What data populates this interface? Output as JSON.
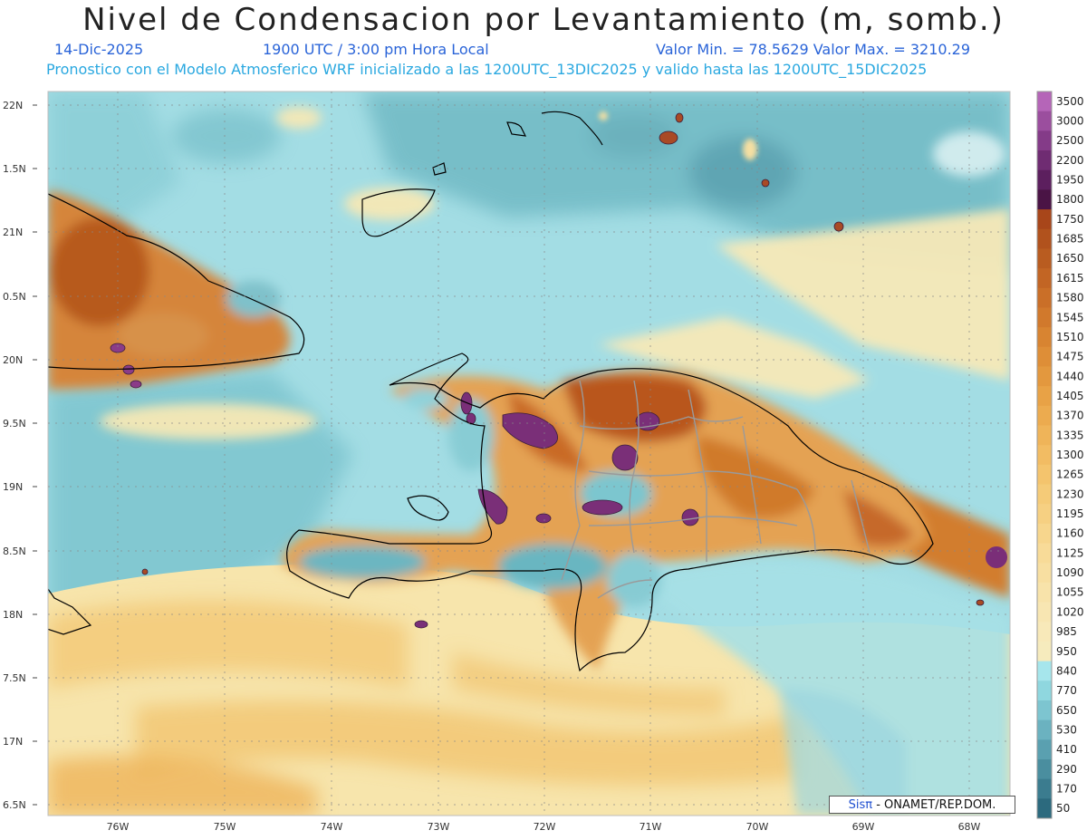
{
  "header": {
    "title": "Nivel de Condensacion por Levantamiento (m, somb.)",
    "date": "14-Dic-2025",
    "time": "1900 UTC / 3:00 pm Hora Local",
    "min_max": "Valor Min. = 78.5629   Valor Max. = 3210.29",
    "model_info": "Pronostico con el Modelo Atmosferico WRF inicializado a las 1200UTC_13DIC2025 y valido hasta las  1200UTC_15DIC2025"
  },
  "axes": {
    "lat_labels": [
      "22N",
      "1.5N",
      "21N",
      "0.5N",
      "20N",
      "9.5N",
      "19N",
      "8.5N",
      "18N",
      "7.5N",
      "17N",
      "6.5N"
    ],
    "lon_labels": [
      "76W",
      "75W",
      "74W",
      "73W",
      "72W",
      "71W",
      "70W",
      "69W",
      "68W"
    ]
  },
  "colorbar": {
    "labels": [
      "3500",
      "3000",
      "2500",
      "2200",
      "1950",
      "1800",
      "1750",
      "1685",
      "1650",
      "1615",
      "1580",
      "1545",
      "1510",
      "1475",
      "1440",
      "1405",
      "1370",
      "1335",
      "1300",
      "1265",
      "1230",
      "1195",
      "1160",
      "1125",
      "1090",
      "1055",
      "1020",
      "985",
      "950",
      "840",
      "770",
      "650",
      "530",
      "410",
      "290",
      "170",
      "50"
    ],
    "colors": [
      "#b565b8",
      "#9b4e9e",
      "#843b88",
      "#6f2c72",
      "#5c1f5e",
      "#4a1445",
      "#a8461a",
      "#b1521d",
      "#b95c20",
      "#c26524",
      "#ca6f28",
      "#d1792c",
      "#d88431",
      "#de8e37",
      "#e3983e",
      "#e8a246",
      "#ecab4f",
      "#efb459",
      "#f2bc63",
      "#f4c46d",
      "#f5cb78",
      "#f6d082",
      "#f7d68d",
      "#f8db98",
      "#f8dfa1",
      "#f8e3aa",
      "#f8e6b2",
      "#f8e9b9",
      "#f6ebbd",
      "#a6e6ec",
      "#8fd7df",
      "#7dc5d0",
      "#6bb2c0",
      "#5aa0b0",
      "#4a8e9f",
      "#3b7c8f",
      "#2c6a7e"
    ]
  },
  "credit": {
    "brand": "Sisπ",
    "text": " - ONAMET/REP.DOM."
  }
}
